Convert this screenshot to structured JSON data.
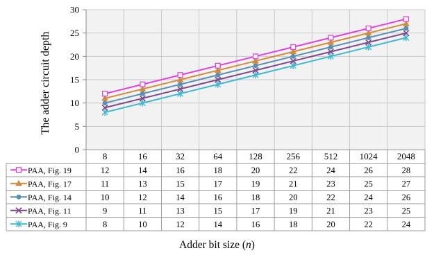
{
  "chart_data": {
    "type": "line",
    "title": "",
    "xlabel": "Adder bit size",
    "xlabel_var": "n",
    "ylabel": "The adder circuit depth",
    "categories": [
      "8",
      "16",
      "32",
      "64",
      "128",
      "256",
      "512",
      "1024",
      "2048"
    ],
    "ylim": [
      0,
      30
    ],
    "yticks": [
      0,
      5,
      10,
      15,
      20,
      25,
      30
    ],
    "grid": true,
    "legend": "data table below plot",
    "series": [
      {
        "name": "PAA, Fig. 19",
        "color": "#e040e0",
        "marker": "square",
        "values": [
          12,
          14,
          16,
          18,
          20,
          22,
          24,
          26,
          28
        ]
      },
      {
        "name": "PAA, Fig. 17",
        "color": "#d08c3c",
        "marker": "triangle",
        "values": [
          11,
          13,
          15,
          17,
          19,
          21,
          23,
          25,
          27
        ]
      },
      {
        "name": "PAA, Fig. 14",
        "color": "#5b8fb0",
        "marker": "circle",
        "values": [
          10,
          12,
          14,
          16,
          18,
          20,
          22,
          24,
          26
        ]
      },
      {
        "name": "PAA, Fig. 11",
        "color": "#7a4a8c",
        "marker": "x",
        "values": [
          9,
          11,
          13,
          15,
          17,
          19,
          21,
          23,
          25
        ]
      },
      {
        "name": "PAA, Fig. 9",
        "color": "#40b8d0",
        "marker": "star",
        "values": [
          8,
          10,
          12,
          14,
          16,
          18,
          20,
          22,
          24
        ]
      }
    ]
  }
}
